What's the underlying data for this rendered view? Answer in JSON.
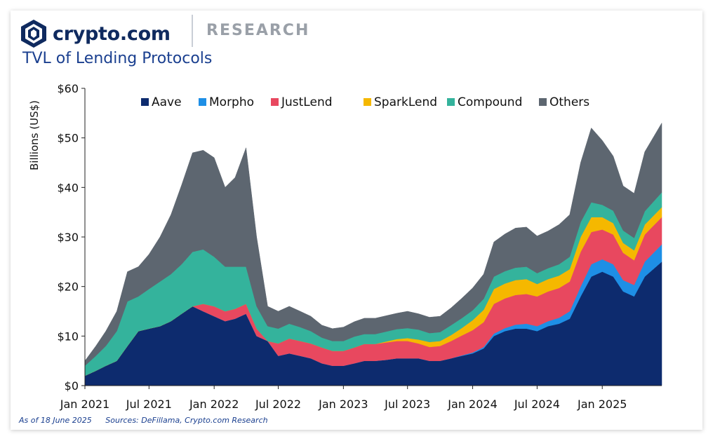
{
  "header": {
    "brand": "crypto.com",
    "section": "RESEARCH",
    "logo_icon": "crypto-com-shield-icon"
  },
  "footer": {
    "as_of": "As of 18 June 2025",
    "sources": "Sources: DeFillama, Crypto.com Research"
  },
  "colors": {
    "Aave": "#0d2b6e",
    "Morpho": "#1e8fe6",
    "JustLend": "#e8485f",
    "SparkLend": "#f5b800",
    "Compound": "#34b39c",
    "Others": "#5d6670"
  },
  "chart_data": {
    "type": "area",
    "stacked": true,
    "title": "TVL of Lending Protocols",
    "ylabel": "Billions (US$)",
    "xlabel": "",
    "ylim": [
      0,
      60
    ],
    "yticks": [
      "$0",
      "$10",
      "$20",
      "$30",
      "$40",
      "$50",
      "$60"
    ],
    "xticks": [
      "Jan 2021",
      "Jul 2021",
      "Jan 2022",
      "Jul 2022",
      "Jan 2023",
      "Jul 2023",
      "Jan 2024",
      "Jul 2024",
      "Jan 2025"
    ],
    "legend_position": "top",
    "x": [
      "2021-01-01",
      "2021-02-01",
      "2021-03-01",
      "2021-04-01",
      "2021-05-01",
      "2021-06-01",
      "2021-07-01",
      "2021-08-01",
      "2021-09-01",
      "2021-10-01",
      "2021-11-01",
      "2021-12-01",
      "2022-01-01",
      "2022-02-01",
      "2022-03-01",
      "2022-04-01",
      "2022-05-01",
      "2022-06-01",
      "2022-07-01",
      "2022-08-01",
      "2022-09-01",
      "2022-10-01",
      "2022-11-01",
      "2022-12-01",
      "2023-01-01",
      "2023-02-01",
      "2023-03-01",
      "2023-04-01",
      "2023-05-01",
      "2023-06-01",
      "2023-07-01",
      "2023-08-01",
      "2023-09-01",
      "2023-10-01",
      "2023-11-01",
      "2023-12-01",
      "2024-01-01",
      "2024-02-01",
      "2024-03-01",
      "2024-04-01",
      "2024-05-01",
      "2024-06-01",
      "2024-07-01",
      "2024-08-01",
      "2024-09-01",
      "2024-10-01",
      "2024-11-01",
      "2024-12-01",
      "2025-01-01",
      "2025-02-01",
      "2025-03-01",
      "2025-04-01",
      "2025-05-01",
      "2025-06-18"
    ],
    "series": [
      {
        "name": "Aave",
        "values": [
          2.0,
          3.0,
          4.0,
          5.0,
          8.0,
          11.0,
          11.5,
          12.0,
          13.0,
          14.5,
          16.0,
          15.0,
          14.0,
          13.0,
          13.5,
          14.5,
          10.0,
          9.0,
          6.0,
          6.5,
          6.0,
          5.5,
          4.5,
          4.0,
          4.0,
          4.5,
          5.0,
          5.0,
          5.2,
          5.5,
          5.5,
          5.5,
          5.0,
          5.0,
          5.5,
          6.0,
          6.5,
          7.5,
          10.0,
          11.0,
          11.5,
          11.5,
          11.0,
          12.0,
          12.5,
          13.5,
          18.0,
          22.0,
          23.0,
          22.0,
          19.0,
          18.0,
          22.0,
          25.0
        ]
      },
      {
        "name": "Morpho",
        "values": [
          0,
          0,
          0,
          0,
          0,
          0,
          0,
          0,
          0,
          0,
          0,
          0,
          0,
          0,
          0,
          0,
          0,
          0,
          0,
          0,
          0,
          0,
          0,
          0,
          0,
          0,
          0,
          0,
          0,
          0,
          0,
          0,
          0,
          0,
          0,
          0.1,
          0.2,
          0.3,
          0.5,
          0.6,
          0.8,
          1.0,
          1.0,
          1.0,
          1.2,
          1.5,
          2.0,
          2.5,
          2.5,
          2.5,
          2.3,
          2.3,
          3.0,
          3.5
        ]
      },
      {
        "name": "JustLend",
        "values": [
          0,
          0,
          0,
          0,
          0,
          0,
          0,
          0,
          0,
          0,
          0,
          1.5,
          2.0,
          2.0,
          2.0,
          2.0,
          1.5,
          0,
          2.5,
          3.0,
          3.0,
          3.0,
          3.2,
          3.0,
          3.0,
          3.2,
          3.4,
          3.4,
          3.5,
          3.5,
          3.5,
          3.0,
          2.8,
          3.0,
          3.5,
          4.0,
          4.5,
          5.0,
          6.0,
          6.0,
          6.0,
          6.0,
          6.0,
          6.0,
          6.0,
          6.0,
          7.0,
          6.5,
          6.0,
          6.0,
          5.5,
          5.0,
          5.5,
          5.5
        ]
      },
      {
        "name": "SparkLend",
        "values": [
          0,
          0,
          0,
          0,
          0,
          0,
          0,
          0,
          0,
          0,
          0,
          0,
          0,
          0,
          0,
          0,
          0,
          0,
          0,
          0,
          0,
          0,
          0,
          0,
          0,
          0,
          0,
          0,
          0.2,
          0.4,
          0.6,
          0.8,
          1.0,
          1.0,
          1.2,
          1.5,
          2.0,
          2.5,
          3.0,
          3.0,
          3.0,
          3.0,
          2.5,
          2.5,
          2.5,
          2.5,
          3.0,
          3.0,
          2.5,
          2.3,
          2.0,
          2.0,
          2.0,
          2.0
        ]
      },
      {
        "name": "Compound",
        "values": [
          2.0,
          3.0,
          4.0,
          6.0,
          9.0,
          7.0,
          8.0,
          9.0,
          9.5,
          10.0,
          11.0,
          11.0,
          10.0,
          9.0,
          8.5,
          7.5,
          4.5,
          3.0,
          3.0,
          3.0,
          2.8,
          2.5,
          2.0,
          2.0,
          2.0,
          2.2,
          2.0,
          2.0,
          2.0,
          2.0,
          2.0,
          2.0,
          1.8,
          1.8,
          2.0,
          2.0,
          2.0,
          2.2,
          2.5,
          2.5,
          2.5,
          2.5,
          2.2,
          2.2,
          2.3,
          2.5,
          3.0,
          3.0,
          2.5,
          2.5,
          2.5,
          2.5,
          2.7,
          3.0
        ]
      },
      {
        "name": "Others",
        "values": [
          1.0,
          2.0,
          3.0,
          4.0,
          6.0,
          6.0,
          7.0,
          9.0,
          12.0,
          16.0,
          20.0,
          20.0,
          20.0,
          16.0,
          18.0,
          24.0,
          14.0,
          4.0,
          3.5,
          3.5,
          3.2,
          3.0,
          2.5,
          2.5,
          2.8,
          3.0,
          3.2,
          3.2,
          3.2,
          3.2,
          3.4,
          3.2,
          3.2,
          3.2,
          3.5,
          4.0,
          4.5,
          5.0,
          7.0,
          7.5,
          8.0,
          8.0,
          7.5,
          7.5,
          8.0,
          8.5,
          12.0,
          15.0,
          13.0,
          11.0,
          9.0,
          9.0,
          12.0,
          14.0
        ]
      }
    ]
  }
}
